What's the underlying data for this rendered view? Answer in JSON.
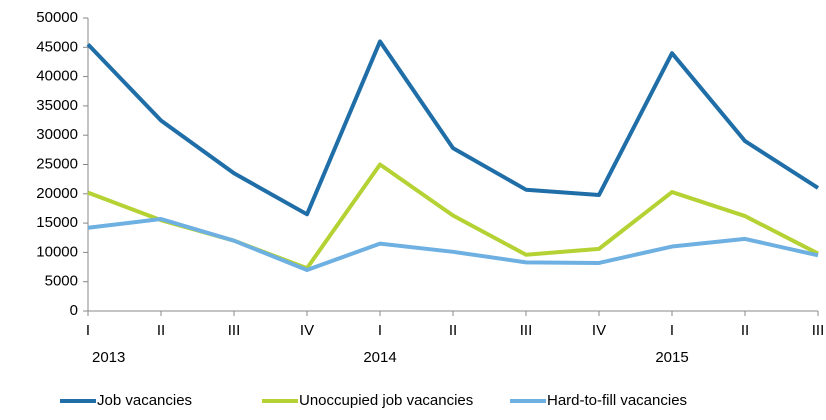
{
  "chart_data": {
    "type": "line",
    "categories": [
      "I",
      "II",
      "III",
      "IV",
      "I",
      "II",
      "III",
      "IV",
      "I",
      "II",
      "III"
    ],
    "years": [
      "2013",
      null,
      null,
      null,
      "2014",
      null,
      null,
      null,
      "2015",
      null,
      null
    ],
    "series": [
      {
        "name": "Job vacancies",
        "color": "#1f6ea7",
        "values": [
          45500,
          32500,
          23500,
          16500,
          46000,
          27800,
          20700,
          19800,
          44000,
          29000,
          21000
        ]
      },
      {
        "name": "Unoccupied job vacancies",
        "color": "#b4d233",
        "values": [
          20200,
          15500,
          12000,
          7300,
          25000,
          16300,
          9600,
          10600,
          20300,
          16200,
          9800
        ]
      },
      {
        "name": "Hard-to-fill vacancies",
        "color": "#6db0e1",
        "values": [
          14200,
          15700,
          12000,
          7000,
          11500,
          10100,
          8300,
          8200,
          11000,
          12300,
          9500
        ]
      }
    ],
    "ylim": [
      0,
      50000
    ],
    "yticks": [
      0,
      5000,
      10000,
      15000,
      20000,
      25000,
      30000,
      35000,
      40000,
      45000,
      50000
    ],
    "grid": false,
    "legend": "bottom"
  }
}
